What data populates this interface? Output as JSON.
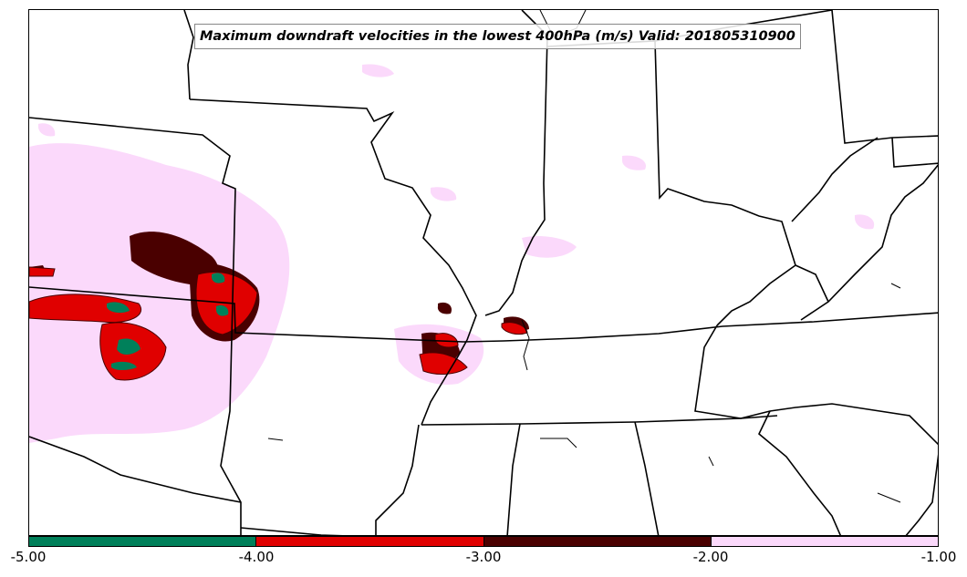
{
  "title": "Maximum downdraft velocities in the lowest 400hPa (m/s) Valid: 201805310900",
  "colors": {
    "bin_1": "#00805a",
    "bin_2": "#e00000",
    "bin_3": "#4a0000",
    "bin_4": "#fbd9fb",
    "boundary": "#000000"
  },
  "colorbar": {
    "ticks": [
      "-5.00",
      "-4.00",
      "-3.00",
      "-2.00",
      "-1.00"
    ],
    "segments": [
      {
        "from": -5.0,
        "to": -4.0,
        "color": "#00805a"
      },
      {
        "from": -4.0,
        "to": -3.0,
        "color": "#e00000"
      },
      {
        "from": -3.0,
        "to": -2.0,
        "color": "#4a0000"
      },
      {
        "from": -2.0,
        "to": -1.0,
        "color": "#fbd9fb"
      }
    ]
  }
}
